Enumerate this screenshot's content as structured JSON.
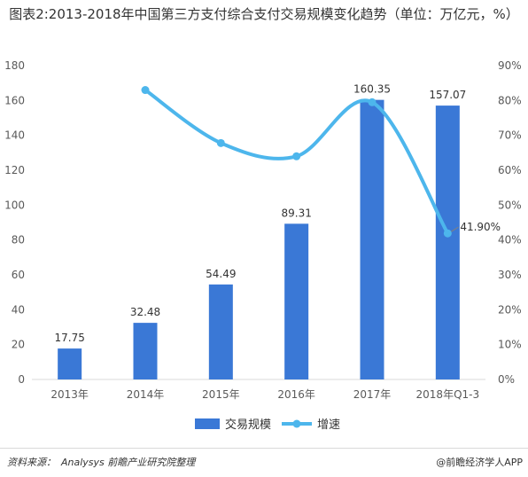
{
  "title": "图表2:2013-2018年中国第三方支付综合支付交易规模变化趋势（单位：万亿元，%）",
  "source_label": "资料来源：",
  "source_text": "Analysys 前瞻产业研究院整理",
  "brand": "@前瞻经济学人APP",
  "colors": {
    "bar": "#3a78d6",
    "line": "#4db6ec",
    "axis_text": "#595959",
    "grid": "#d9d9d9"
  },
  "chart_data": {
    "type": "bar+line",
    "categories": [
      "2013年",
      "2014年",
      "2015年",
      "2016年",
      "2017年",
      "2018年Q1-3"
    ],
    "series": [
      {
        "name": "交易规模",
        "type": "bar",
        "axis": "left",
        "values": [
          17.75,
          32.48,
          54.49,
          89.31,
          160.35,
          157.07
        ],
        "labels": [
          "17.75",
          "32.48",
          "54.49",
          "89.31",
          "160.35",
          "157.07"
        ]
      },
      {
        "name": "增速",
        "type": "line",
        "axis": "right",
        "smooth": true,
        "values": [
          null,
          83.0,
          67.8,
          64.0,
          79.5,
          41.9
        ],
        "labels": [
          null,
          null,
          null,
          null,
          null,
          "41.90%"
        ]
      }
    ],
    "y_left": {
      "min": 0,
      "max": 180,
      "ticks": [
        "0",
        "20",
        "40",
        "60",
        "80",
        "100",
        "120",
        "140",
        "160",
        "180"
      ]
    },
    "y_right": {
      "min": 0,
      "max": 90,
      "ticks": [
        "0%",
        "10%",
        "20%",
        "30%",
        "40%",
        "50%",
        "60%",
        "70%",
        "80%",
        "90%"
      ]
    },
    "grid": false,
    "legend": "bottom"
  }
}
